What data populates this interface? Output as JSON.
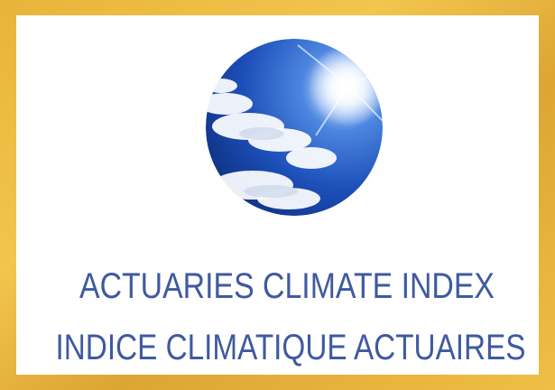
{
  "logo": {
    "title": "ACTUARIES CLIMATE INDEX",
    "subtitle": "INDICE CLIMATIQUE ACTUAIRES"
  }
}
